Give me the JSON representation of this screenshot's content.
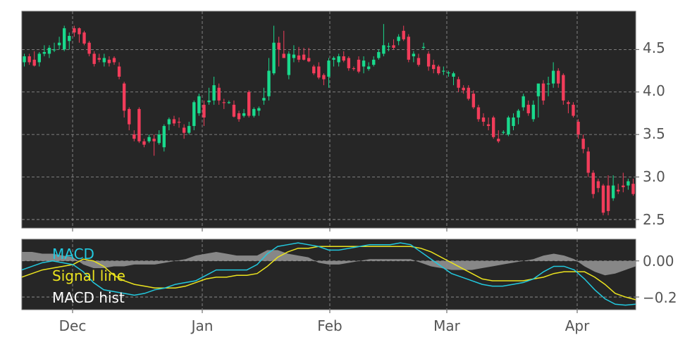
{
  "chart_data": [
    {
      "type": "candlestick",
      "panel": "price",
      "x_labels": [
        "Dec",
        "Jan",
        "Feb",
        "Mar",
        "Apr"
      ],
      "y_ticks": [
        "2.5",
        "3.0",
        "3.5",
        "4.0",
        "4.5"
      ],
      "ylim": [
        2.4,
        4.95
      ],
      "grid": true,
      "colors": {
        "background": "#262626",
        "up": "#19d98c",
        "down": "#f23c5a",
        "grid": "#9a9a9a"
      },
      "ohlc": [
        [
          4.35,
          4.45,
          4.3,
          4.42
        ],
        [
          4.42,
          4.45,
          4.32,
          4.35
        ],
        [
          4.38,
          4.48,
          4.3,
          4.31
        ],
        [
          4.35,
          4.47,
          4.3,
          4.45
        ],
        [
          4.45,
          4.55,
          4.42,
          4.47
        ],
        [
          4.45,
          4.55,
          4.4,
          4.52
        ],
        [
          4.5,
          4.58,
          4.47,
          4.5
        ],
        [
          4.55,
          4.65,
          4.5,
          4.58
        ],
        [
          4.5,
          4.78,
          4.48,
          4.75
        ],
        [
          4.6,
          4.7,
          4.5,
          4.66
        ],
        [
          4.75,
          4.78,
          4.65,
          4.7
        ],
        [
          4.75,
          4.76,
          4.58,
          4.68
        ],
        [
          4.7,
          4.72,
          4.55,
          4.57
        ],
        [
          4.58,
          4.6,
          4.42,
          4.45
        ],
        [
          4.45,
          4.48,
          4.3,
          4.33
        ],
        [
          4.4,
          4.45,
          4.35,
          4.38
        ],
        [
          4.35,
          4.45,
          4.3,
          4.4
        ],
        [
          4.38,
          4.42,
          4.3,
          4.34
        ],
        [
          4.4,
          4.42,
          4.32,
          4.35
        ],
        [
          4.3,
          4.35,
          4.15,
          4.18
        ],
        [
          4.1,
          4.12,
          3.7,
          3.78
        ],
        [
          3.8,
          3.82,
          3.55,
          3.62
        ],
        [
          3.5,
          3.55,
          3.42,
          3.45
        ],
        [
          3.8,
          3.82,
          3.4,
          3.42
        ],
        [
          3.42,
          3.45,
          3.35,
          3.38
        ],
        [
          3.42,
          3.5,
          3.4,
          3.47
        ],
        [
          3.45,
          3.5,
          3.25,
          3.42
        ],
        [
          3.4,
          3.55,
          3.38,
          3.5
        ],
        [
          3.35,
          3.62,
          3.3,
          3.6
        ],
        [
          3.62,
          3.7,
          3.55,
          3.68
        ],
        [
          3.68,
          3.72,
          3.6,
          3.63
        ],
        [
          3.65,
          3.7,
          3.58,
          3.64
        ],
        [
          3.58,
          3.62,
          3.45,
          3.52
        ],
        [
          3.52,
          3.65,
          3.5,
          3.6
        ],
        [
          3.6,
          3.9,
          3.55,
          3.88
        ],
        [
          3.75,
          3.98,
          3.72,
          3.95
        ],
        [
          3.85,
          3.9,
          3.6,
          3.7
        ],
        [
          3.88,
          4.05,
          3.85,
          3.9
        ],
        [
          3.9,
          4.18,
          3.85,
          4.08
        ],
        [
          4.05,
          4.1,
          3.85,
          3.9
        ],
        [
          3.88,
          3.92,
          3.8,
          3.87
        ],
        [
          3.88,
          3.9,
          3.86,
          3.88
        ],
        [
          3.85,
          3.9,
          3.7,
          3.71
        ],
        [
          3.75,
          3.78,
          3.65,
          3.68
        ],
        [
          3.72,
          3.8,
          3.7,
          3.75
        ],
        [
          4.0,
          4.02,
          3.7,
          3.72
        ],
        [
          3.72,
          3.82,
          3.7,
          3.8
        ],
        [
          3.78,
          3.83,
          3.72,
          3.81
        ],
        [
          3.9,
          4.05,
          3.85,
          3.93
        ],
        [
          3.95,
          4.4,
          3.9,
          4.25
        ],
        [
          4.22,
          4.78,
          4.2,
          4.58
        ],
        [
          4.58,
          4.65,
          4.3,
          4.5
        ],
        [
          4.45,
          4.72,
          4.4,
          4.4
        ],
        [
          4.2,
          4.48,
          4.15,
          4.45
        ],
        [
          4.4,
          4.55,
          4.35,
          4.44
        ],
        [
          4.43,
          4.53,
          4.35,
          4.38
        ],
        [
          4.44,
          4.52,
          4.37,
          4.38
        ],
        [
          4.4,
          4.52,
          4.35,
          4.36
        ],
        [
          4.3,
          4.32,
          4.2,
          4.22
        ],
        [
          4.3,
          4.35,
          4.15,
          4.17
        ],
        [
          4.2,
          4.22,
          4.08,
          4.15
        ],
        [
          4.18,
          4.4,
          4.05,
          4.37
        ],
        [
          4.38,
          4.42,
          4.3,
          4.4
        ],
        [
          4.35,
          4.45,
          4.3,
          4.42
        ],
        [
          4.42,
          4.48,
          4.35,
          4.37
        ],
        [
          4.4,
          4.42,
          4.25,
          4.28
        ],
        [
          4.28,
          4.3,
          4.25,
          4.27
        ],
        [
          4.38,
          4.42,
          4.22,
          4.24
        ],
        [
          4.3,
          4.42,
          4.22,
          4.37
        ],
        [
          4.27,
          4.35,
          4.25,
          4.3
        ],
        [
          4.32,
          4.42,
          4.3,
          4.38
        ],
        [
          4.4,
          4.5,
          4.38,
          4.47
        ],
        [
          4.45,
          4.8,
          4.42,
          4.55
        ],
        [
          4.53,
          4.58,
          4.48,
          4.54
        ],
        [
          4.55,
          4.62,
          4.5,
          4.52
        ],
        [
          4.6,
          4.68,
          4.55,
          4.65
        ],
        [
          4.72,
          4.78,
          4.6,
          4.62
        ],
        [
          4.65,
          4.68,
          4.35,
          4.38
        ],
        [
          4.42,
          4.48,
          4.35,
          4.45
        ],
        [
          4.4,
          4.45,
          4.3,
          4.32
        ],
        [
          4.52,
          4.58,
          4.5,
          4.53
        ],
        [
          4.45,
          4.48,
          4.25,
          4.3
        ],
        [
          4.32,
          4.38,
          4.22,
          4.27
        ],
        [
          4.3,
          4.32,
          4.2,
          4.22
        ],
        [
          4.25,
          4.3,
          4.2,
          4.25
        ],
        [
          4.22,
          4.25,
          4.18,
          4.23
        ],
        [
          4.18,
          4.24,
          4.08,
          4.22
        ],
        [
          4.15,
          4.18,
          4.0,
          4.05
        ],
        [
          4.05,
          4.08,
          3.98,
          4.02
        ],
        [
          4.05,
          4.08,
          3.9,
          3.92
        ],
        [
          3.98,
          4.02,
          3.8,
          3.82
        ],
        [
          3.82,
          3.85,
          3.65,
          3.68
        ],
        [
          3.7,
          3.75,
          3.6,
          3.65
        ],
        [
          3.62,
          3.7,
          3.55,
          3.6
        ],
        [
          3.7,
          3.72,
          3.45,
          3.47
        ],
        [
          3.45,
          3.55,
          3.4,
          3.42
        ],
        [
          3.52,
          3.55,
          3.5,
          3.53
        ],
        [
          3.5,
          3.72,
          3.48,
          3.7
        ],
        [
          3.6,
          3.75,
          3.55,
          3.7
        ],
        [
          3.7,
          3.8,
          3.62,
          3.78
        ],
        [
          3.82,
          3.98,
          3.78,
          3.95
        ],
        [
          3.85,
          3.9,
          3.72,
          3.75
        ],
        [
          3.68,
          3.9,
          3.65,
          3.85
        ],
        [
          3.95,
          4.08,
          3.7,
          4.1
        ],
        [
          4.1,
          4.14,
          3.85,
          3.9
        ],
        [
          4.1,
          4.18,
          3.95,
          4.1
        ],
        [
          4.1,
          4.35,
          4.05,
          4.25
        ],
        [
          4.25,
          4.28,
          4.05,
          4.1
        ],
        [
          4.2,
          4.22,
          3.85,
          3.9
        ],
        [
          3.88,
          3.9,
          3.75,
          3.86
        ],
        [
          3.85,
          3.88,
          3.7,
          3.72
        ],
        [
          3.65,
          3.68,
          3.45,
          3.5
        ],
        [
          3.45,
          3.5,
          3.28,
          3.33
        ],
        [
          3.3,
          3.35,
          3.0,
          3.05
        ],
        [
          3.05,
          3.08,
          2.75,
          2.8
        ],
        [
          2.95,
          2.98,
          2.82,
          2.87
        ],
        [
          2.9,
          2.92,
          2.55,
          2.58
        ],
        [
          2.9,
          3.02,
          2.55,
          2.6
        ],
        [
          2.75,
          3.02,
          2.72,
          2.9
        ],
        [
          2.85,
          2.92,
          2.8,
          2.83
        ],
        [
          2.9,
          3.05,
          2.82,
          2.88
        ],
        [
          2.9,
          2.98,
          2.85,
          2.95
        ],
        [
          2.92,
          2.98,
          2.78,
          2.8
        ]
      ]
    },
    {
      "type": "line",
      "panel": "macd",
      "x_labels": [
        "Dec",
        "Jan",
        "Feb",
        "Mar",
        "Apr"
      ],
      "y_ticks": [
        "−0.2",
        "0.00"
      ],
      "ylim": [
        -0.27,
        0.12
      ],
      "legend": [
        "MACD",
        "Signal line",
        "MACD hist"
      ],
      "legend_position": "upper-left",
      "colors": {
        "macd": "#22c9df",
        "signal": "#ece41e",
        "hist": "#8c8c8c",
        "legend_hist_text": "#ffffff"
      },
      "macd": [
        -0.05,
        -0.03,
        -0.01,
        0.0,
        -0.01,
        -0.02,
        -0.06,
        -0.12,
        -0.16,
        -0.17,
        -0.18,
        -0.19,
        -0.18,
        -0.16,
        -0.15,
        -0.13,
        -0.12,
        -0.11,
        -0.08,
        -0.05,
        -0.05,
        -0.05,
        -0.05,
        -0.02,
        0.04,
        0.08,
        0.09,
        0.1,
        0.09,
        0.08,
        0.06,
        0.06,
        0.07,
        0.08,
        0.09,
        0.09,
        0.09,
        0.1,
        0.09,
        0.05,
        0.01,
        -0.03,
        -0.07,
        -0.09,
        -0.11,
        -0.13,
        -0.14,
        -0.14,
        -0.13,
        -0.12,
        -0.1,
        -0.06,
        -0.03,
        -0.03,
        -0.05,
        -0.1,
        -0.16,
        -0.21,
        -0.24,
        -0.245,
        -0.24
      ],
      "signal": [
        -0.09,
        -0.07,
        -0.05,
        -0.04,
        -0.03,
        -0.02,
        0.01,
        0.0,
        -0.03,
        -0.08,
        -0.11,
        -0.13,
        -0.14,
        -0.15,
        -0.15,
        -0.15,
        -0.14,
        -0.12,
        -0.1,
        -0.09,
        -0.09,
        -0.08,
        -0.08,
        -0.07,
        -0.03,
        0.02,
        0.05,
        0.07,
        0.07,
        0.08,
        0.08,
        0.08,
        0.08,
        0.08,
        0.08,
        0.08,
        0.08,
        0.08,
        0.08,
        0.07,
        0.05,
        0.02,
        -0.01,
        -0.04,
        -0.07,
        -0.1,
        -0.11,
        -0.11,
        -0.11,
        -0.11,
        -0.1,
        -0.09,
        -0.07,
        -0.06,
        -0.06,
        -0.06,
        -0.09,
        -0.13,
        -0.18,
        -0.2,
        -0.215
      ],
      "hist": [
        0.05,
        0.05,
        0.04,
        0.04,
        0.03,
        0.02,
        -0.02,
        -0.04,
        -0.04,
        -0.03,
        -0.03,
        -0.02,
        -0.02,
        -0.02,
        -0.01,
        0.0,
        0.01,
        0.03,
        0.04,
        0.05,
        0.04,
        0.03,
        0.03,
        0.03,
        0.06,
        0.06,
        0.04,
        0.03,
        0.02,
        -0.01,
        -0.02,
        -0.02,
        -0.01,
        0.0,
        0.01,
        0.01,
        0.01,
        0.01,
        0.01,
        -0.01,
        -0.03,
        -0.04,
        -0.05,
        -0.05,
        -0.05,
        -0.04,
        -0.03,
        -0.02,
        -0.01,
        0.0,
        0.01,
        0.03,
        0.04,
        0.03,
        0.01,
        -0.03,
        -0.06,
        -0.08,
        -0.07,
        -0.05,
        -0.03
      ]
    }
  ]
}
